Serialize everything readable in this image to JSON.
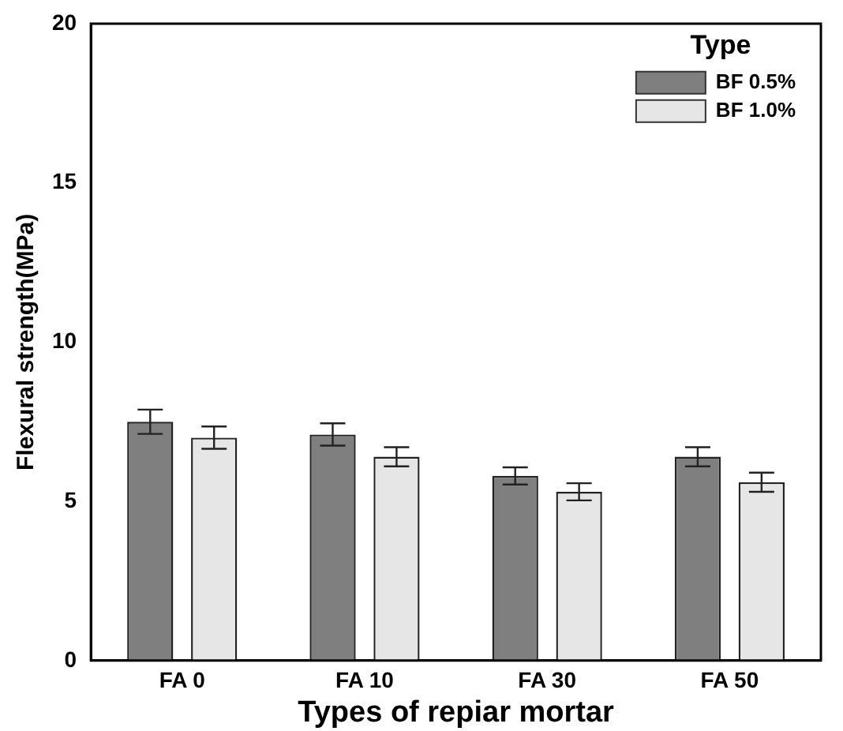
{
  "chart_data": {
    "type": "bar",
    "xlabel": "Types of repiar mortar",
    "ylabel": "Flexural strength(MPa)",
    "legend_title": "Type",
    "legend": "top right",
    "grid": false,
    "categories": [
      "FA 0",
      "FA 10",
      "FA 30",
      "FA 50"
    ],
    "ylim": [
      0,
      20
    ],
    "yticks": [
      0,
      5,
      10,
      15,
      20
    ],
    "series": [
      {
        "name": "BF 0.5%",
        "color": "#7f7f7f",
        "values": [
          7.5,
          7.1,
          5.8,
          6.4
        ],
        "errors": [
          0.38,
          0.35,
          0.27,
          0.3
        ]
      },
      {
        "name": "BF 1.0%",
        "color": "#e6e6e6",
        "values": [
          7.0,
          6.4,
          5.3,
          5.6
        ],
        "errors": [
          0.35,
          0.3,
          0.27,
          0.3
        ]
      }
    ]
  }
}
